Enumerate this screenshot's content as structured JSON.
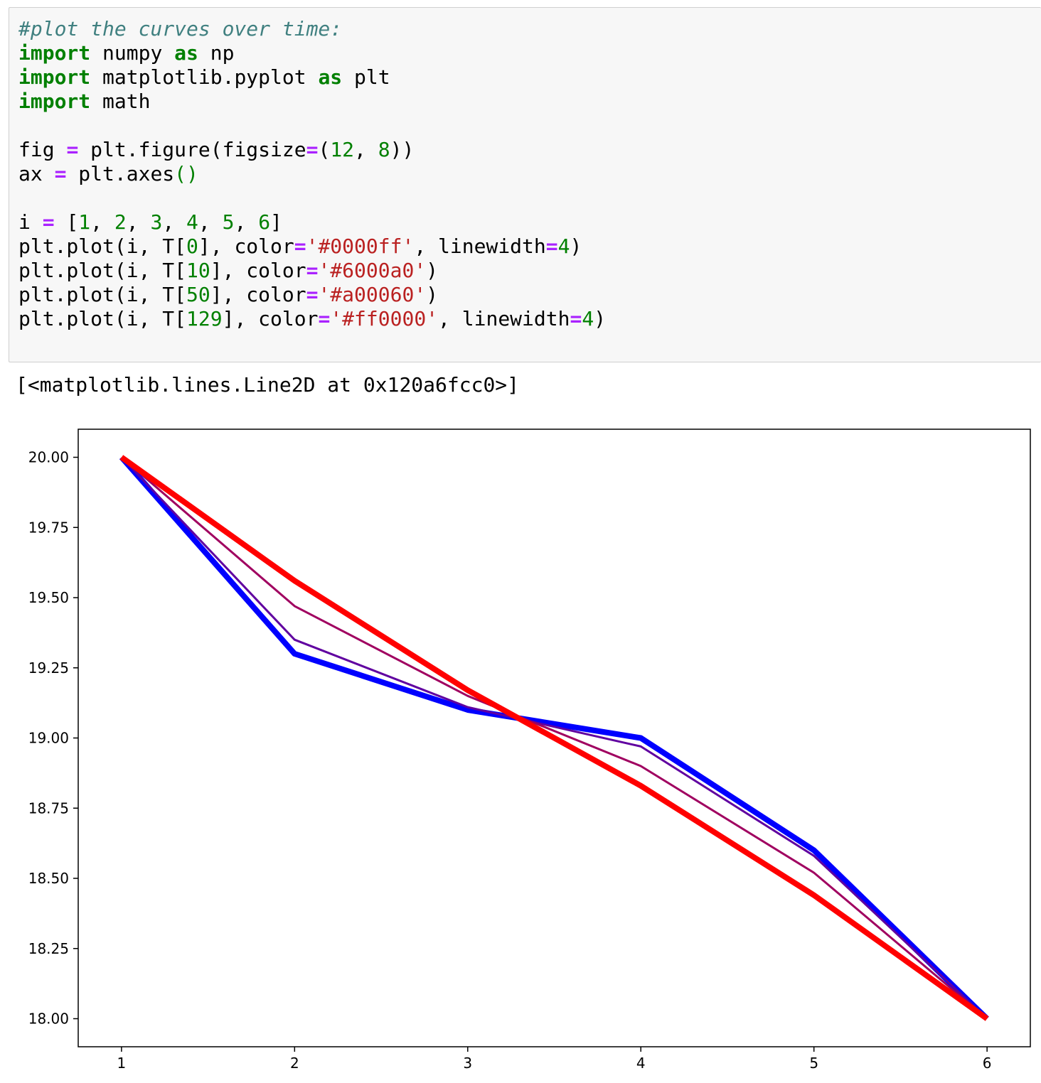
{
  "code_cell": {
    "lines": [
      [
        {
          "t": "#plot the curves over time:",
          "c": "cm"
        }
      ],
      [
        {
          "t": "import",
          "c": "kw"
        },
        {
          "t": " numpy "
        },
        {
          "t": "as",
          "c": "kw"
        },
        {
          "t": " np"
        }
      ],
      [
        {
          "t": "import",
          "c": "kw"
        },
        {
          "t": " matplotlib.pyplot "
        },
        {
          "t": "as",
          "c": "kw"
        },
        {
          "t": " plt"
        }
      ],
      [
        {
          "t": "import",
          "c": "kw"
        },
        {
          "t": " math"
        }
      ],
      [],
      [
        {
          "t": "fig "
        },
        {
          "t": "=",
          "c": "op"
        },
        {
          "t": " plt.figure(figsize"
        },
        {
          "t": "=",
          "c": "op"
        },
        {
          "t": "("
        },
        {
          "t": "12",
          "c": "num"
        },
        {
          "t": ", "
        },
        {
          "t": "8",
          "c": "num"
        },
        {
          "t": "))"
        }
      ],
      [
        {
          "t": "ax "
        },
        {
          "t": "=",
          "c": "op"
        },
        {
          "t": " plt.axes"
        },
        {
          "t": "()",
          "c": "par"
        }
      ],
      [],
      [
        {
          "t": "i "
        },
        {
          "t": "=",
          "c": "op"
        },
        {
          "t": " ["
        },
        {
          "t": "1",
          "c": "num"
        },
        {
          "t": ", "
        },
        {
          "t": "2",
          "c": "num"
        },
        {
          "t": ", "
        },
        {
          "t": "3",
          "c": "num"
        },
        {
          "t": ", "
        },
        {
          "t": "4",
          "c": "num"
        },
        {
          "t": ", "
        },
        {
          "t": "5",
          "c": "num"
        },
        {
          "t": ", "
        },
        {
          "t": "6",
          "c": "num"
        },
        {
          "t": "]"
        }
      ],
      [
        {
          "t": "plt.plot(i, T["
        },
        {
          "t": "0",
          "c": "num"
        },
        {
          "t": "], color"
        },
        {
          "t": "=",
          "c": "op"
        },
        {
          "t": "'#0000ff'",
          "c": "str"
        },
        {
          "t": ", linewidth"
        },
        {
          "t": "=",
          "c": "op"
        },
        {
          "t": "4",
          "c": "num"
        },
        {
          "t": ")"
        }
      ],
      [
        {
          "t": "plt.plot(i, T["
        },
        {
          "t": "10",
          "c": "num"
        },
        {
          "t": "], color"
        },
        {
          "t": "=",
          "c": "op"
        },
        {
          "t": "'#6000a0'",
          "c": "str"
        },
        {
          "t": ")"
        }
      ],
      [
        {
          "t": "plt.plot(i, T["
        },
        {
          "t": "50",
          "c": "num"
        },
        {
          "t": "], color"
        },
        {
          "t": "=",
          "c": "op"
        },
        {
          "t": "'#a00060'",
          "c": "str"
        },
        {
          "t": ")"
        }
      ],
      [
        {
          "t": "plt.plot(i, T["
        },
        {
          "t": "129",
          "c": "num"
        },
        {
          "t": "], color"
        },
        {
          "t": "=",
          "c": "op"
        },
        {
          "t": "'#ff0000'",
          "c": "str"
        },
        {
          "t": ", linewidth"
        },
        {
          "t": "=",
          "c": "op"
        },
        {
          "t": "4",
          "c": "num"
        },
        {
          "t": ")"
        }
      ]
    ]
  },
  "output": {
    "text": "[<matplotlib.lines.Line2D at 0x120a6fcc0>]"
  },
  "chart_data": {
    "type": "line",
    "title": "",
    "xlabel": "",
    "ylabel": "",
    "x": [
      1,
      2,
      3,
      4,
      5,
      6
    ],
    "xlim": [
      0.75,
      6.25
    ],
    "ylim": [
      17.9,
      20.1
    ],
    "x_ticks": [
      "1",
      "2",
      "3",
      "4",
      "5",
      "6"
    ],
    "y_ticks": [
      "20.00",
      "19.75",
      "19.50",
      "19.25",
      "19.00",
      "18.75",
      "18.50",
      "18.25",
      "18.00"
    ],
    "grid": false,
    "legend": false,
    "series": [
      {
        "color": "#0000ff",
        "linewidth": 4,
        "values": [
          20.0,
          19.3,
          19.1,
          19.0,
          18.6,
          18.0
        ]
      },
      {
        "color": "#6000a0",
        "linewidth": 1.5,
        "values": [
          20.0,
          19.35,
          19.11,
          18.97,
          18.58,
          18.0
        ]
      },
      {
        "color": "#a00060",
        "linewidth": 1.5,
        "values": [
          20.0,
          19.47,
          19.15,
          18.9,
          18.52,
          18.0
        ]
      },
      {
        "color": "#ff0000",
        "linewidth": 4,
        "values": [
          20.0,
          19.56,
          19.17,
          18.83,
          18.44,
          18.0
        ]
      }
    ]
  }
}
